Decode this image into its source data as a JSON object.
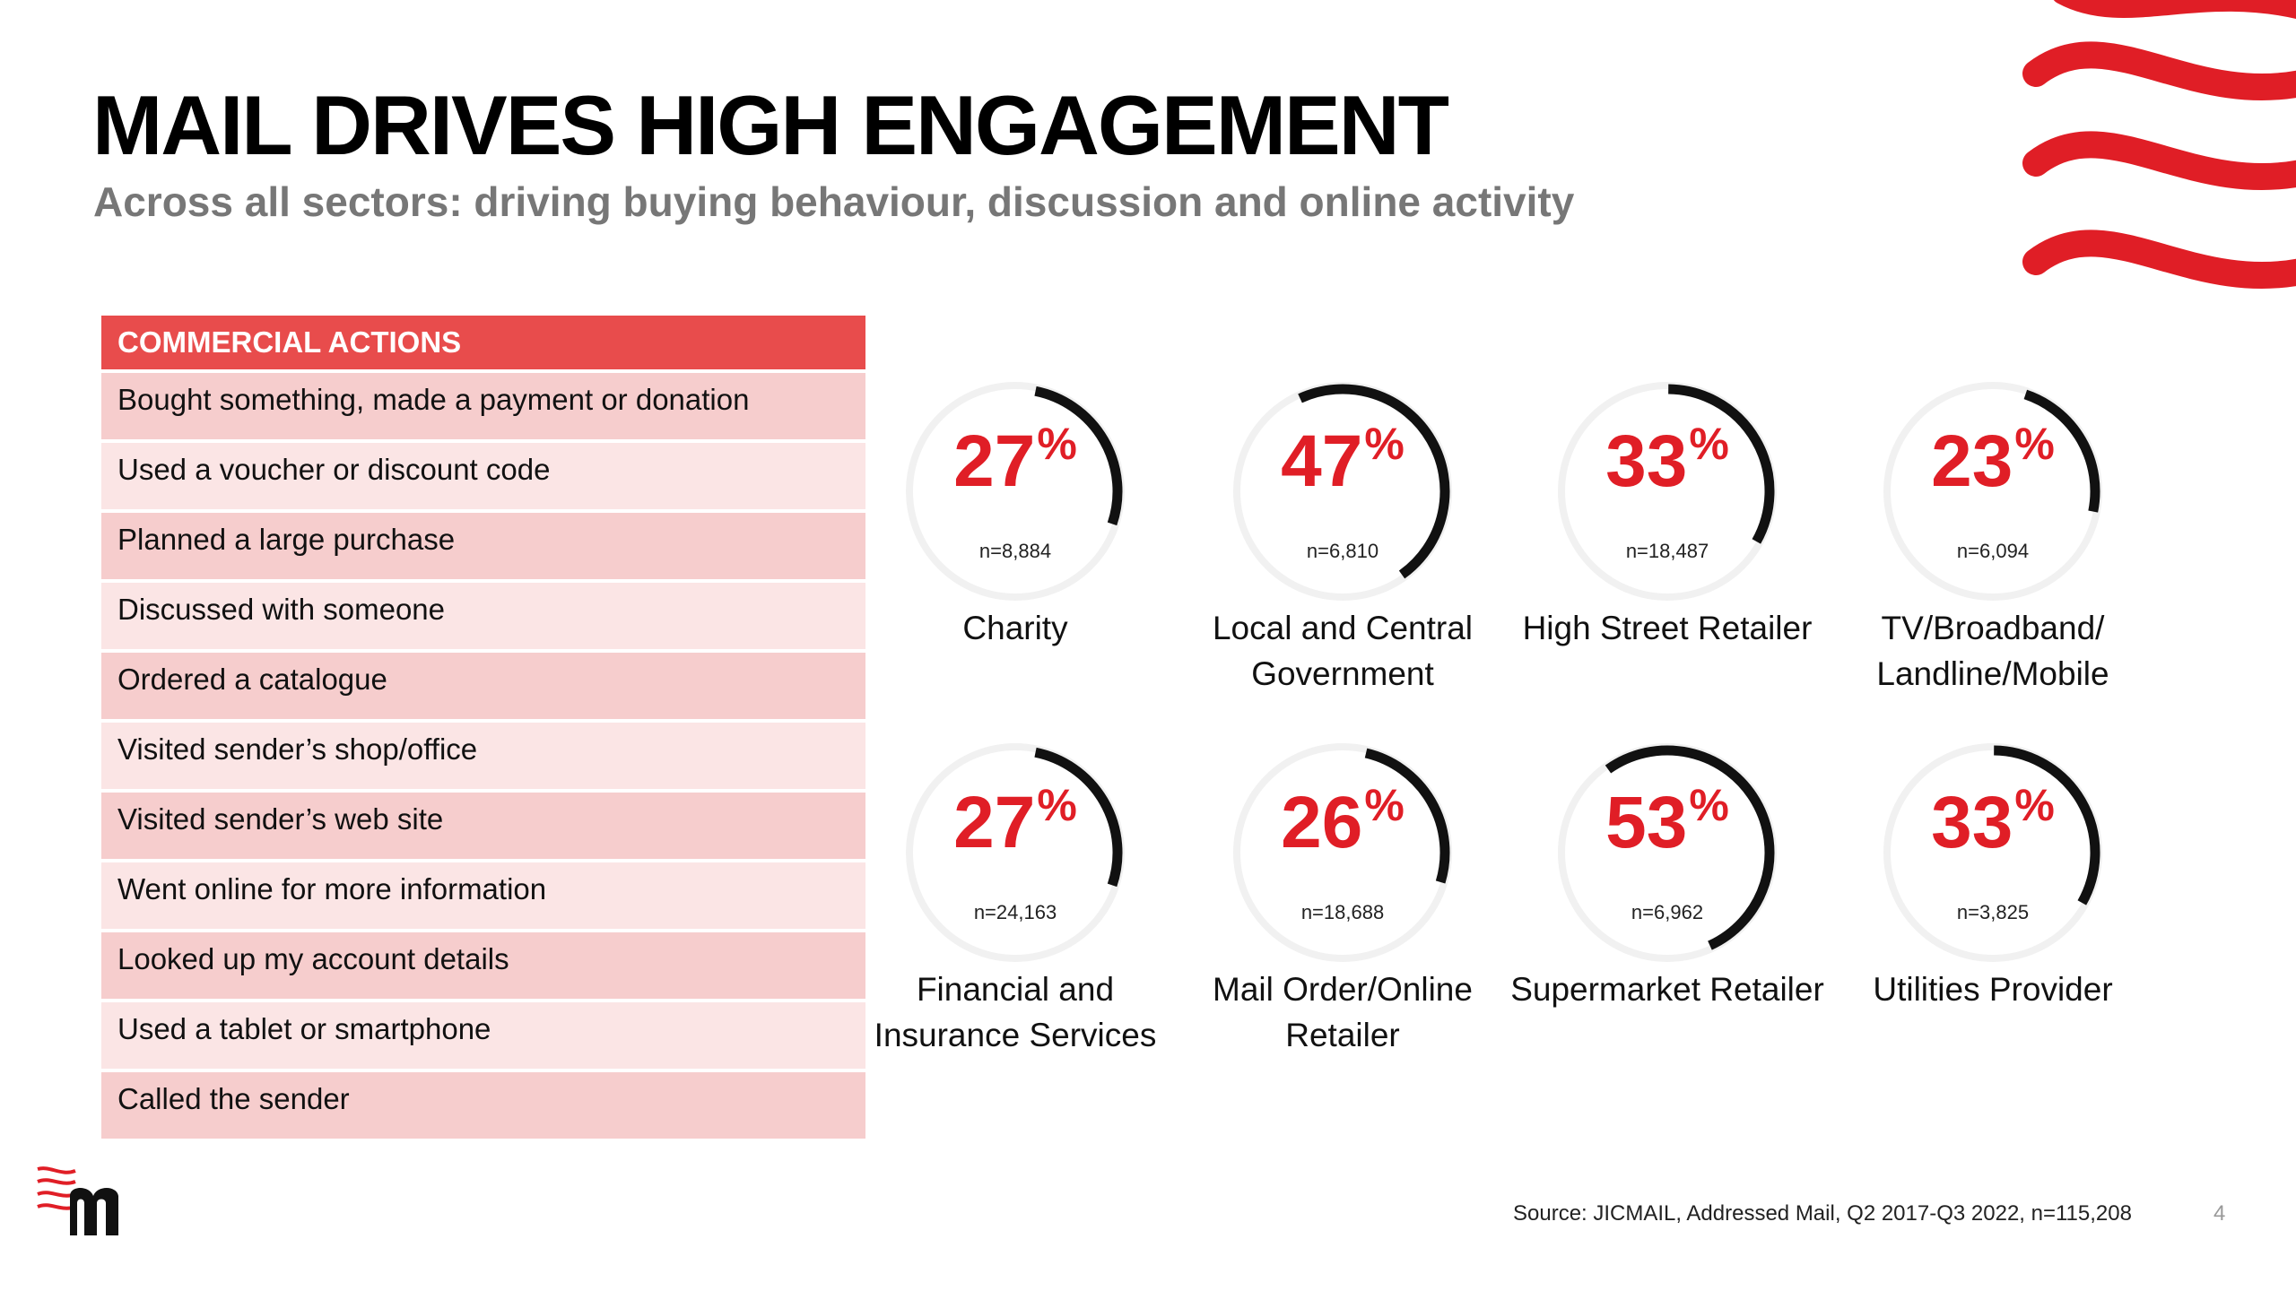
{
  "title": "MAIL DRIVES HIGH ENGAGEMENT",
  "subtitle": "Across all sectors: driving buying behaviour, discussion and online activity",
  "table": {
    "header": "COMMERCIAL ACTIONS",
    "rows": [
      "Bought something, made a payment or donation",
      "Used a voucher or discount code",
      "Planned a large purchase",
      "Discussed with someone",
      "Ordered a catalogue",
      "Visited sender’s shop/office",
      "Visited sender’s web site",
      "Went online for more information",
      "Looked up my account details",
      "Used a tablet or smartphone",
      "Called the sender"
    ]
  },
  "chart_data": {
    "type": "gauge",
    "unit": "%",
    "items": [
      {
        "label": "Charity",
        "value": 27,
        "n": "n=8,884"
      },
      {
        "label": "Local and Central Government",
        "value": 47,
        "n": "n=6,810"
      },
      {
        "label": "High Street Retailer",
        "value": 33,
        "n": "n=18,487"
      },
      {
        "label": "TV/Broadband/ Landline/Mobile",
        "value": 23,
        "n": "n=6,094"
      },
      {
        "label": "Financial and Insurance Services",
        "value": 27,
        "n": "n=24,163"
      },
      {
        "label": "Mail Order/Online Retailer",
        "value": 26,
        "n": "n=18,688"
      },
      {
        "label": "Supermarket Retailer",
        "value": 53,
        "n": "n=6,962"
      },
      {
        "label": "Utilities Provider",
        "value": 33,
        "n": "n=3,825"
      }
    ]
  },
  "source": "Source: JICMAIL, Addressed Mail, Q2 2017-Q3 2022, n=115,208",
  "page_number": "4",
  "colors": {
    "accent_red": "#e01e26",
    "header_red": "#e84c4c",
    "row_odd": "#f6cdcd",
    "row_even": "#fbe5e5",
    "arc_black": "#111111",
    "ring_bg": "#f1f1f1"
  },
  "logo_icon": "mail-m-logo-icon",
  "decoration_icon": "red-waves-icon"
}
